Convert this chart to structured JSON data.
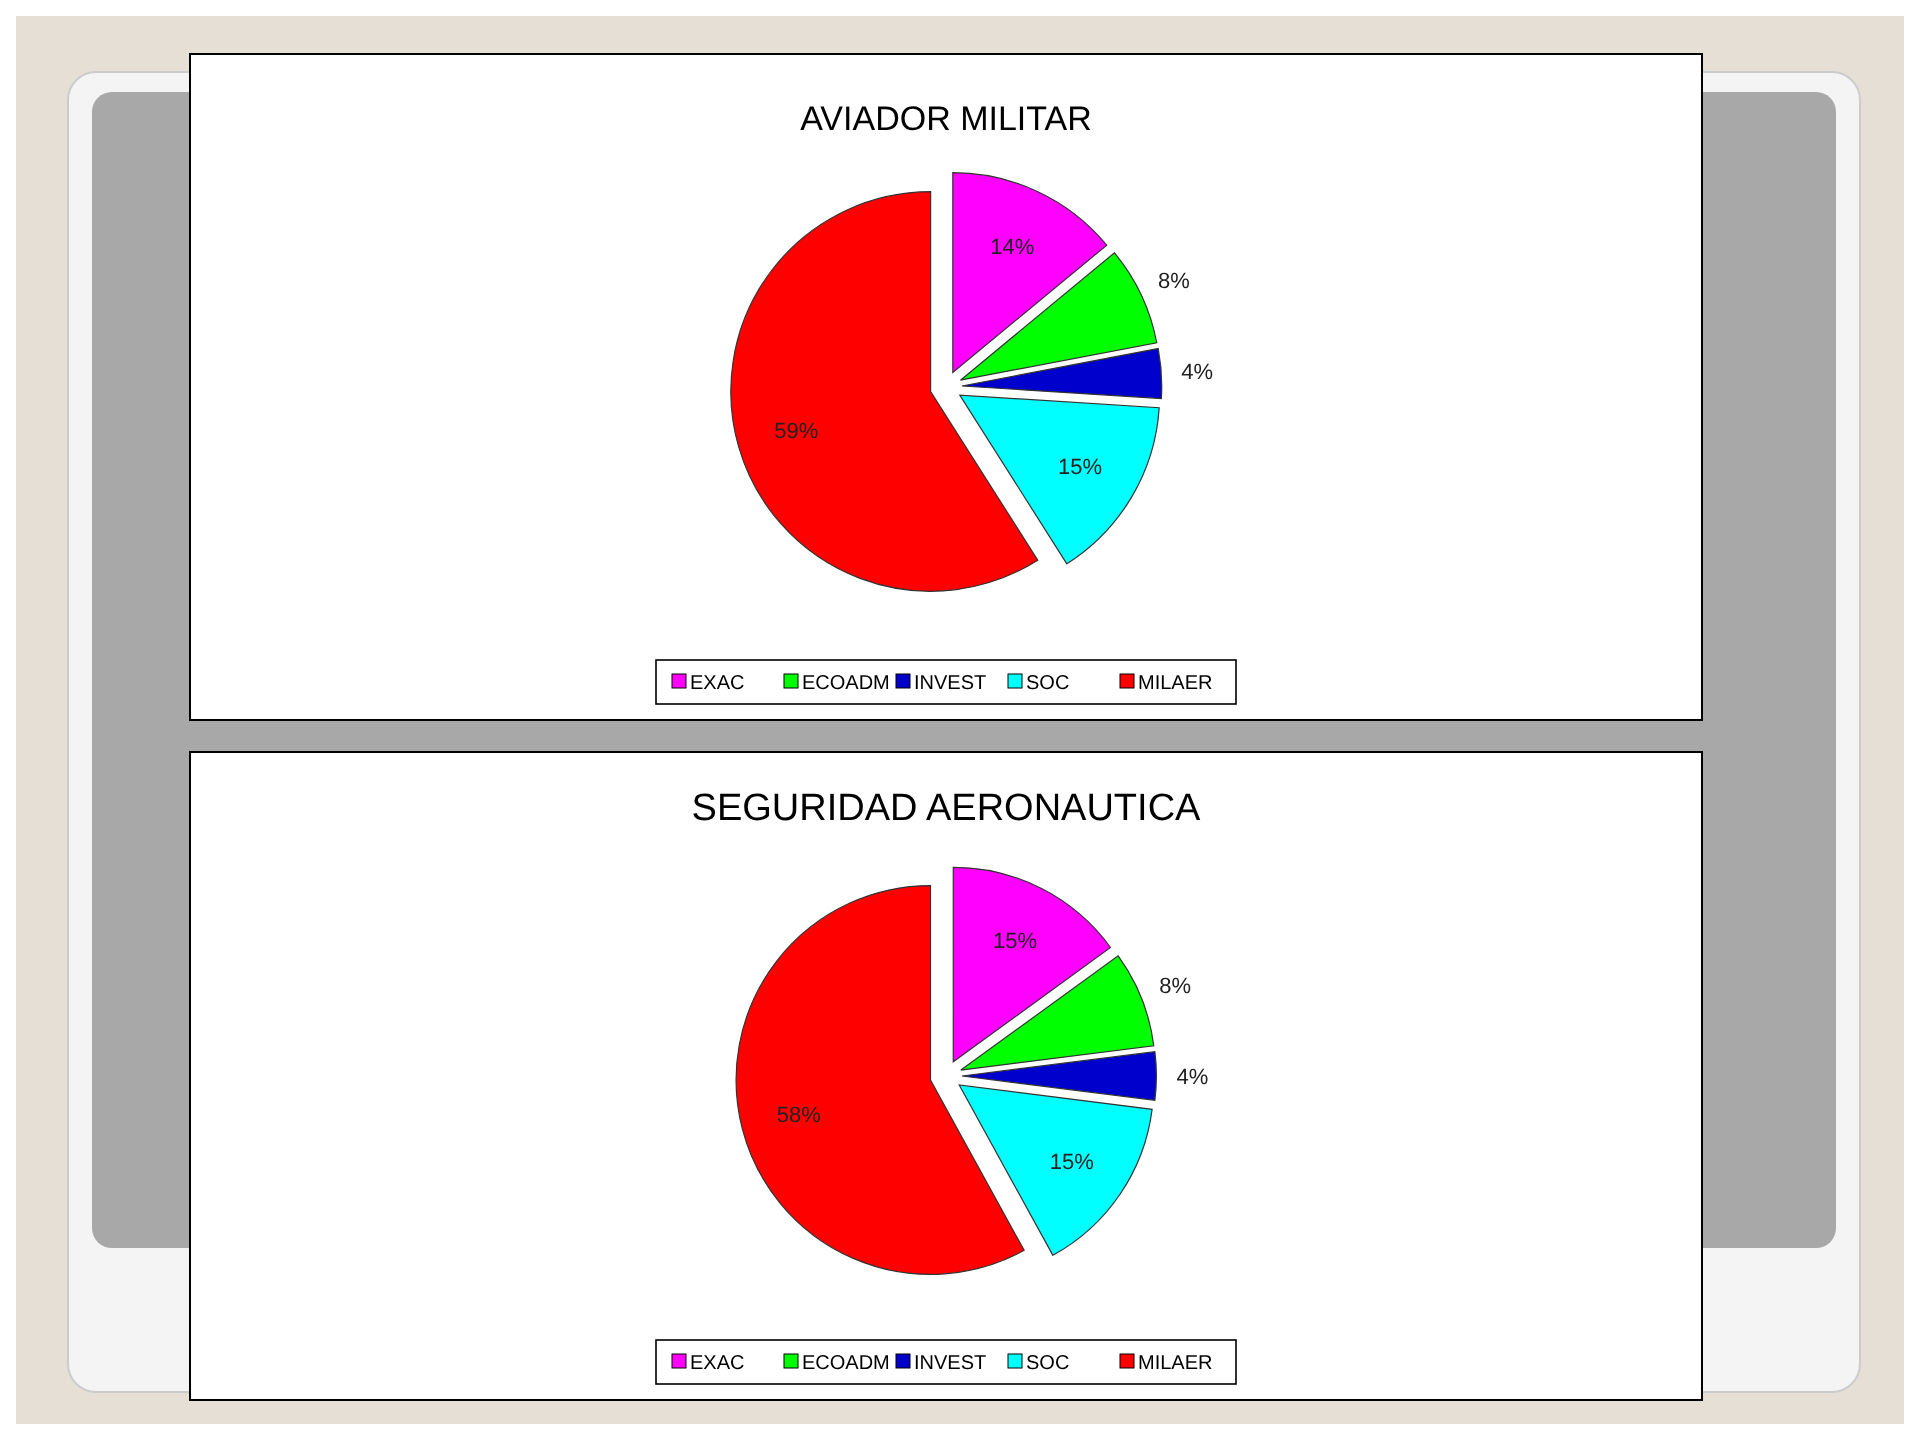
{
  "chart_data": [
    {
      "type": "pie",
      "title": "AVIADOR MILITAR",
      "categories": [
        "EXAC",
        "ECOADM",
        "INVEST",
        "SOC",
        "MILAER"
      ],
      "values": [
        14,
        8,
        4,
        15,
        59
      ],
      "value_labels": [
        "14%",
        "8%",
        "4%",
        "15%",
        "59%"
      ],
      "colors": [
        "#ff00ff",
        "#00ff00",
        "#0000cc",
        "#00ffff",
        "#ff0000"
      ],
      "legend": "bottom"
    },
    {
      "type": "pie",
      "title": "SEGURIDAD AERONAUTICA",
      "categories": [
        "EXAC",
        "ECOADM",
        "INVEST",
        "SOC",
        "MILAER"
      ],
      "values": [
        15,
        8,
        4,
        15,
        58
      ],
      "value_labels": [
        "15%",
        "8%",
        "4%",
        "15%",
        "58%"
      ],
      "colors": [
        "#ff00ff",
        "#00ff00",
        "#0000cc",
        "#00ffff",
        "#ff0000"
      ],
      "legend": "bottom"
    }
  ]
}
